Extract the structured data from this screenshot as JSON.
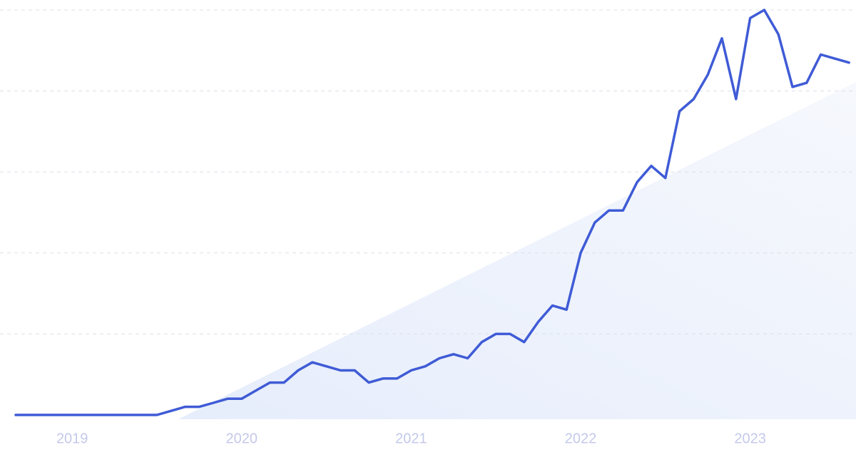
{
  "chart_data": {
    "type": "line",
    "categories": [
      null,
      null,
      null,
      null,
      "2019",
      null,
      null,
      null,
      null,
      null,
      null,
      null,
      null,
      null,
      null,
      null,
      "2020",
      null,
      null,
      null,
      null,
      null,
      null,
      null,
      null,
      null,
      null,
      null,
      "2021",
      null,
      null,
      null,
      null,
      null,
      null,
      null,
      null,
      null,
      null,
      null,
      "2022",
      null,
      null,
      null,
      null,
      null,
      null,
      null,
      null,
      null,
      null,
      null,
      "2023",
      null,
      null,
      null,
      null,
      null,
      null,
      null
    ],
    "series": [
      {
        "color": "#3f5bd6",
        "values": [
          0,
          0,
          0,
          0,
          0,
          0,
          0,
          0,
          0,
          0,
          0,
          1,
          2,
          2,
          3,
          4,
          4,
          6,
          8,
          8,
          11,
          13,
          12,
          11,
          11,
          8,
          9,
          9,
          11,
          12,
          14,
          15,
          14,
          18,
          20,
          20,
          18,
          23,
          27,
          26,
          40,
          47.5,
          50.5,
          50.5,
          57.5,
          61.5,
          58.5,
          75,
          78,
          84,
          93,
          78,
          98,
          100,
          94,
          81,
          82,
          89,
          88,
          87
        ]
      }
    ],
    "ylim": [
      0,
      100
    ],
    "yticks": [
      20,
      40,
      60,
      80,
      100
    ],
    "grid": true
  }
}
